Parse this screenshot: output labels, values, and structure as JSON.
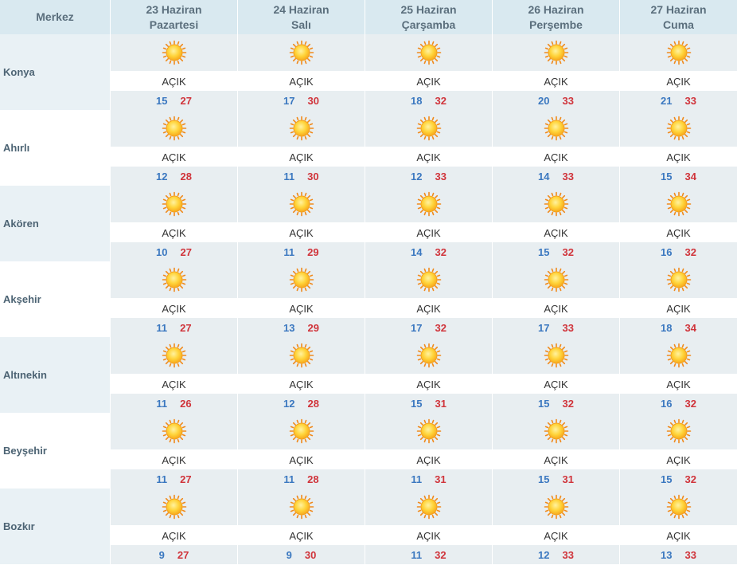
{
  "header": {
    "merkez": "Merkez",
    "days": [
      {
        "date": "23 Haziran",
        "weekday": "Pazartesi"
      },
      {
        "date": "24 Haziran",
        "weekday": "Salı"
      },
      {
        "date": "25 Haziran",
        "weekday": "Çarşamba"
      },
      {
        "date": "26 Haziran",
        "weekday": "Perşembe"
      },
      {
        "date": "27 Haziran",
        "weekday": "Cuma"
      }
    ]
  },
  "icon": "sun-icon",
  "colors": {
    "min": "#3b78c0",
    "max": "#d0343b",
    "header_bg": "#d9e9f0"
  },
  "rows": [
    {
      "name": "Konya",
      "days": [
        {
          "desc": "AÇIK",
          "min": "15",
          "max": "27"
        },
        {
          "desc": "AÇIK",
          "min": "17",
          "max": "30"
        },
        {
          "desc": "AÇIK",
          "min": "18",
          "max": "32"
        },
        {
          "desc": "AÇIK",
          "min": "20",
          "max": "33"
        },
        {
          "desc": "AÇIK",
          "min": "21",
          "max": "33"
        }
      ]
    },
    {
      "name": "Ahırlı",
      "days": [
        {
          "desc": "AÇIK",
          "min": "12",
          "max": "28"
        },
        {
          "desc": "AÇIK",
          "min": "11",
          "max": "30"
        },
        {
          "desc": "AÇIK",
          "min": "12",
          "max": "33"
        },
        {
          "desc": "AÇIK",
          "min": "14",
          "max": "33"
        },
        {
          "desc": "AÇIK",
          "min": "15",
          "max": "34"
        }
      ]
    },
    {
      "name": "Akören",
      "days": [
        {
          "desc": "AÇIK",
          "min": "10",
          "max": "27"
        },
        {
          "desc": "AÇIK",
          "min": "11",
          "max": "29"
        },
        {
          "desc": "AÇIK",
          "min": "14",
          "max": "32"
        },
        {
          "desc": "AÇIK",
          "min": "15",
          "max": "32"
        },
        {
          "desc": "AÇIK",
          "min": "16",
          "max": "32"
        }
      ]
    },
    {
      "name": "Akşehir",
      "days": [
        {
          "desc": "AÇIK",
          "min": "11",
          "max": "27"
        },
        {
          "desc": "AÇIK",
          "min": "13",
          "max": "29"
        },
        {
          "desc": "AÇIK",
          "min": "17",
          "max": "32"
        },
        {
          "desc": "AÇIK",
          "min": "17",
          "max": "33"
        },
        {
          "desc": "AÇIK",
          "min": "18",
          "max": "34"
        }
      ]
    },
    {
      "name": "Altınekin",
      "days": [
        {
          "desc": "AÇIK",
          "min": "11",
          "max": "26"
        },
        {
          "desc": "AÇIK",
          "min": "12",
          "max": "28"
        },
        {
          "desc": "AÇIK",
          "min": "15",
          "max": "31"
        },
        {
          "desc": "AÇIK",
          "min": "15",
          "max": "32"
        },
        {
          "desc": "AÇIK",
          "min": "16",
          "max": "32"
        }
      ]
    },
    {
      "name": "Beyşehir",
      "days": [
        {
          "desc": "AÇIK",
          "min": "11",
          "max": "27"
        },
        {
          "desc": "AÇIK",
          "min": "11",
          "max": "28"
        },
        {
          "desc": "AÇIK",
          "min": "11",
          "max": "31"
        },
        {
          "desc": "AÇIK",
          "min": "15",
          "max": "31"
        },
        {
          "desc": "AÇIK",
          "min": "15",
          "max": "32"
        }
      ]
    },
    {
      "name": "Bozkır",
      "days": [
        {
          "desc": "AÇIK",
          "min": "9",
          "max": "27"
        },
        {
          "desc": "AÇIK",
          "min": "9",
          "max": "30"
        },
        {
          "desc": "AÇIK",
          "min": "11",
          "max": "32"
        },
        {
          "desc": "AÇIK",
          "min": "12",
          "max": "33"
        },
        {
          "desc": "AÇIK",
          "min": "13",
          "max": "33"
        }
      ]
    }
  ]
}
